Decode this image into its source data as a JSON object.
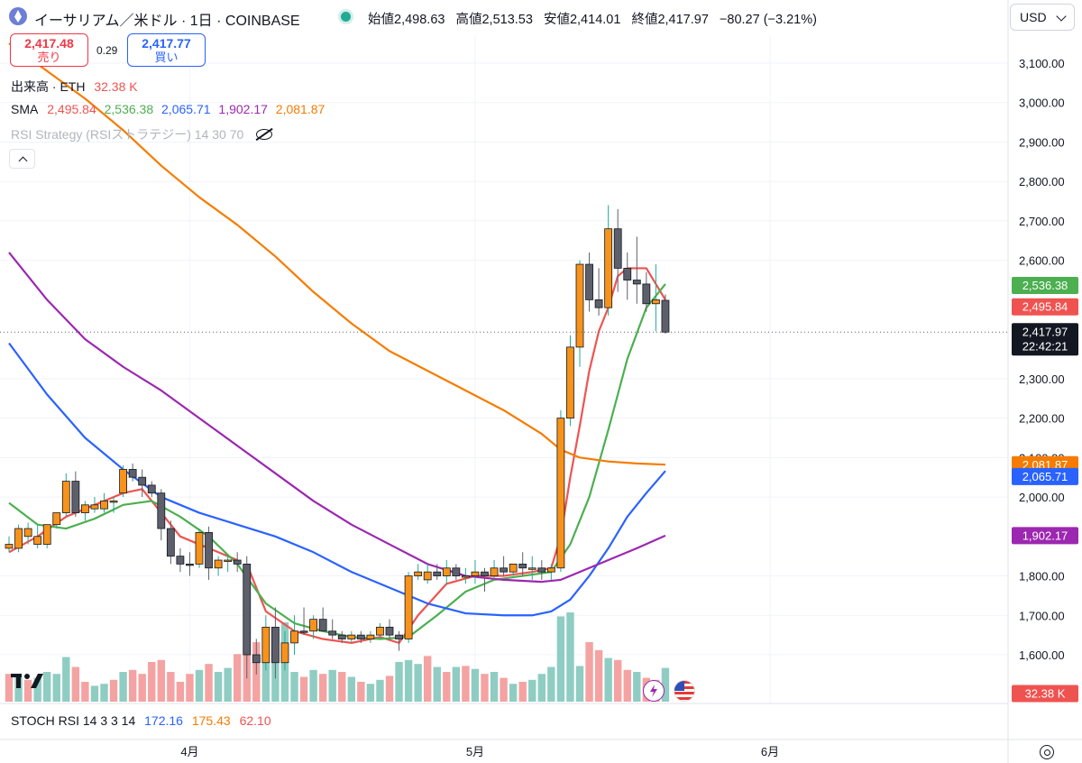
{
  "header": {
    "title": "イーサリアム／米ドル · 1日 · COINBASE",
    "ohlc": [
      {
        "label": "始値",
        "value": "2,498.63"
      },
      {
        "label": "高値",
        "value": "2,513.53"
      },
      {
        "label": "安値",
        "value": "2,414.01"
      },
      {
        "label": "終値",
        "value": "2,417.97"
      }
    ],
    "change": "−80.27 (−3.21%)",
    "currency": "USD"
  },
  "trade": {
    "sell_price": "2,417.48",
    "sell_label": "売り",
    "spread": "0.29",
    "buy_price": "2,417.77",
    "buy_label": "買い"
  },
  "legend": {
    "volume_label": "出来高 · ETH",
    "volume_value": "32.38 K",
    "sma_label": "SMA",
    "sma_values": [
      {
        "value": "2,495.84",
        "color": "#ef5350"
      },
      {
        "value": "2,536.38",
        "color": "#4caf50"
      },
      {
        "value": "2,065.71",
        "color": "#2962ff"
      },
      {
        "value": "1,902.17",
        "color": "#9c27b0"
      },
      {
        "value": "2,081.87",
        "color": "#f57c00"
      }
    ],
    "rsi_label": "RSI Strategy (RSIストラテジー) 14 30 70"
  },
  "stoch": {
    "label": "STOCH RSI 14 3 3 14",
    "values": [
      {
        "value": "172.16",
        "color": "#2962ff"
      },
      {
        "value": "175.43",
        "color": "#f57c00"
      },
      {
        "value": "62.10",
        "color": "#ef5350"
      }
    ]
  },
  "price_tags": {
    "last": "2,417.97",
    "countdown": "22:42:21",
    "volume": "32.38 K"
  },
  "icons": [
    "ethereum-logo-icon",
    "live-dot-icon",
    "chevron-down-icon",
    "eye-off-icon",
    "chevron-up-icon",
    "tradingview-logo-icon",
    "flash-icon",
    "us-flag-icon",
    "settings-icon"
  ],
  "chart_data": {
    "type": "candlestick",
    "y_ticks": [
      "3,100.00",
      "3,000.00",
      "2,900.00",
      "2,800.00",
      "2,700.00",
      "2,600.00",
      "2,300.00",
      "2,200.00",
      "2,100.00",
      "2,000.00",
      "1,800.00",
      "1,700.00",
      "1,600.00"
    ],
    "y_range": [
      1540,
      3180
    ],
    "x_ticks": [
      {
        "label": "4月",
        "day": 19
      },
      {
        "label": "5月",
        "day": 49
      },
      {
        "label": "6月",
        "day": 80
      }
    ],
    "colors": {
      "up": "#f7931a",
      "down": "#5d606b",
      "vol_up": "#8fcdc3",
      "vol_down": "#f4a3a2"
    },
    "candles": [
      [
        1880,
        1900,
        1860,
        1870,
        0
      ],
      [
        1870,
        1930,
        1860,
        1920,
        0
      ],
      [
        1920,
        1935,
        1880,
        1900,
        0
      ],
      [
        1900,
        1930,
        1870,
        1880,
        0
      ],
      [
        1880,
        1930,
        1870,
        1930,
        0
      ],
      [
        1930,
        1960,
        1920,
        1960,
        0
      ],
      [
        1960,
        2060,
        1950,
        2040,
        0
      ],
      [
        2040,
        2065,
        1950,
        1960,
        1
      ],
      [
        1960,
        1990,
        1940,
        1980,
        0
      ],
      [
        1980,
        2000,
        1960,
        1970,
        0
      ],
      [
        1970,
        2010,
        1960,
        1990,
        0
      ],
      [
        1990,
        2000,
        1960,
        1990,
        0
      ],
      [
        2010,
        2080,
        2000,
        2070,
        0
      ],
      [
        2070,
        2085,
        2040,
        2050,
        1
      ],
      [
        2050,
        2070,
        2000,
        2030,
        1
      ],
      [
        2030,
        2040,
        2000,
        2010,
        1
      ],
      [
        2010,
        2020,
        1890,
        1920,
        1
      ],
      [
        1920,
        1940,
        1830,
        1850,
        1
      ],
      [
        1850,
        1870,
        1810,
        1830,
        1
      ],
      [
        1830,
        1860,
        1800,
        1830,
        1
      ],
      [
        1830,
        1920,
        1820,
        1910,
        0
      ],
      [
        1910,
        1925,
        1790,
        1820,
        1
      ],
      [
        1820,
        1850,
        1800,
        1840,
        0
      ],
      [
        1840,
        1850,
        1810,
        1840,
        0
      ],
      [
        1840,
        1860,
        1810,
        1830,
        1
      ],
      [
        1830,
        1850,
        1540,
        1600,
        1
      ],
      [
        1600,
        1640,
        1550,
        1580,
        1
      ],
      [
        1580,
        1700,
        1560,
        1670,
        0
      ],
      [
        1670,
        1720,
        1540,
        1580,
        1
      ],
      [
        1580,
        1660,
        1560,
        1630,
        0
      ],
      [
        1630,
        1700,
        1600,
        1660,
        0
      ],
      [
        1660,
        1720,
        1650,
        1660,
        1
      ],
      [
        1660,
        1700,
        1640,
        1690,
        0
      ],
      [
        1690,
        1720,
        1660,
        1660,
        1
      ],
      [
        1660,
        1690,
        1640,
        1650,
        1
      ],
      [
        1650,
        1660,
        1630,
        1640,
        1
      ],
      [
        1640,
        1660,
        1630,
        1650,
        0
      ],
      [
        1650,
        1660,
        1630,
        1640,
        1
      ],
      [
        1640,
        1660,
        1630,
        1650,
        0
      ],
      [
        1650,
        1680,
        1640,
        1670,
        0
      ],
      [
        1670,
        1690,
        1640,
        1650,
        1
      ],
      [
        1650,
        1660,
        1610,
        1640,
        1
      ],
      [
        1640,
        1810,
        1630,
        1800,
        0
      ],
      [
        1800,
        1830,
        1790,
        1810,
        0
      ],
      [
        1790,
        1830,
        1780,
        1810,
        0
      ],
      [
        1810,
        1830,
        1790,
        1800,
        1
      ],
      [
        1800,
        1840,
        1780,
        1820,
        0
      ],
      [
        1820,
        1830,
        1790,
        1800,
        1
      ],
      [
        1800,
        1820,
        1780,
        1800,
        0
      ],
      [
        1800,
        1840,
        1780,
        1810,
        0
      ],
      [
        1810,
        1820,
        1760,
        1800,
        1
      ],
      [
        1800,
        1840,
        1790,
        1820,
        0
      ],
      [
        1820,
        1850,
        1800,
        1810,
        1
      ],
      [
        1810,
        1830,
        1800,
        1830,
        0
      ],
      [
        1830,
        1860,
        1800,
        1820,
        1
      ],
      [
        1820,
        1850,
        1790,
        1820,
        0
      ],
      [
        1820,
        1840,
        1790,
        1810,
        1
      ],
      [
        1810,
        1830,
        1790,
        1820,
        0
      ],
      [
        1820,
        2220,
        1810,
        2200,
        0
      ],
      [
        2200,
        2410,
        2180,
        2380,
        0
      ],
      [
        2380,
        2600,
        2330,
        2590,
        0
      ],
      [
        2590,
        2620,
        2470,
        2500,
        1
      ],
      [
        2500,
        2580,
        2460,
        2480,
        1
      ],
      [
        2480,
        2740,
        2460,
        2680,
        0
      ],
      [
        2680,
        2730,
        2520,
        2580,
        1
      ],
      [
        2580,
        2620,
        2500,
        2550,
        1
      ],
      [
        2550,
        2660,
        2490,
        2540,
        1
      ],
      [
        2540,
        2570,
        2470,
        2490,
        1
      ],
      [
        2500,
        2590,
        2420,
        2490,
        0
      ],
      [
        2498.63,
        2513.53,
        2414.01,
        2417.97,
        1
      ]
    ],
    "volumes": [
      [
        28,
        1
      ],
      [
        25,
        0
      ],
      [
        22,
        1
      ],
      [
        24,
        0
      ],
      [
        30,
        0
      ],
      [
        28,
        0
      ],
      [
        45,
        0
      ],
      [
        35,
        1
      ],
      [
        20,
        1
      ],
      [
        16,
        0
      ],
      [
        18,
        0
      ],
      [
        22,
        1
      ],
      [
        30,
        0
      ],
      [
        32,
        1
      ],
      [
        28,
        1
      ],
      [
        40,
        1
      ],
      [
        42,
        1
      ],
      [
        30,
        1
      ],
      [
        20,
        1
      ],
      [
        28,
        1
      ],
      [
        32,
        0
      ],
      [
        38,
        1
      ],
      [
        30,
        0
      ],
      [
        34,
        0
      ],
      [
        48,
        1
      ],
      [
        92,
        1
      ],
      [
        60,
        1
      ],
      [
        72,
        0
      ],
      [
        54,
        0
      ],
      [
        80,
        0
      ],
      [
        30,
        0
      ],
      [
        25,
        1
      ],
      [
        32,
        0
      ],
      [
        28,
        1
      ],
      [
        32,
        0
      ],
      [
        30,
        1
      ],
      [
        25,
        0
      ],
      [
        20,
        1
      ],
      [
        18,
        0
      ],
      [
        22,
        0
      ],
      [
        26,
        1
      ],
      [
        40,
        0
      ],
      [
        42,
        0
      ],
      [
        38,
        0
      ],
      [
        46,
        1
      ],
      [
        35,
        0
      ],
      [
        30,
        1
      ],
      [
        35,
        0
      ],
      [
        36,
        1
      ],
      [
        33,
        0
      ],
      [
        28,
        1
      ],
      [
        30,
        0
      ],
      [
        24,
        1
      ],
      [
        18,
        0
      ],
      [
        20,
        1
      ],
      [
        22,
        0
      ],
      [
        28,
        0
      ],
      [
        35,
        0
      ],
      [
        86,
        0
      ],
      [
        90,
        0
      ],
      [
        36,
        0
      ],
      [
        60,
        1
      ],
      [
        52,
        1
      ],
      [
        44,
        0
      ],
      [
        42,
        1
      ],
      [
        32,
        1
      ],
      [
        30,
        0
      ],
      [
        24,
        1
      ],
      [
        22,
        1
      ],
      [
        34,
        0
      ]
    ],
    "sma": [
      {
        "value": 2495.84,
        "color": "#ef5350",
        "points": [
          [
            25,
            1830
          ],
          [
            27,
            1710
          ],
          [
            30,
            1660
          ],
          [
            33,
            1640
          ],
          [
            36,
            1630
          ],
          [
            39,
            1645
          ],
          [
            41,
            1630
          ],
          [
            43,
            1700
          ],
          [
            46,
            1780
          ],
          [
            49,
            1800
          ],
          [
            52,
            1800
          ],
          [
            55,
            1810
          ],
          [
            57,
            1820
          ],
          [
            58,
            1900
          ],
          [
            59,
            2050
          ],
          [
            60,
            2180
          ],
          [
            61,
            2320
          ],
          [
            62,
            2420
          ],
          [
            63,
            2480
          ],
          [
            64,
            2560
          ],
          [
            65,
            2580
          ],
          [
            67,
            2580
          ],
          [
            69,
            2500
          ]
        ],
        "start": [
          [
            0,
            1860
          ],
          [
            3,
            1900
          ],
          [
            6,
            1950
          ],
          [
            9,
            1980
          ],
          [
            12,
            2010
          ],
          [
            14,
            2020
          ],
          [
            16,
            1960
          ],
          [
            18,
            1900
          ],
          [
            20,
            1880
          ],
          [
            22,
            1860
          ],
          [
            24,
            1840
          ]
        ]
      },
      {
        "value": 2536.38,
        "color": "#4caf50",
        "points": [
          [
            0,
            1985
          ],
          [
            3,
            1930
          ],
          [
            6,
            1920
          ],
          [
            9,
            1945
          ],
          [
            12,
            1980
          ],
          [
            15,
            1990
          ],
          [
            18,
            1950
          ],
          [
            21,
            1900
          ],
          [
            24,
            1830
          ],
          [
            27,
            1730
          ],
          [
            30,
            1680
          ],
          [
            33,
            1660
          ],
          [
            36,
            1645
          ],
          [
            39,
            1640
          ],
          [
            42,
            1645
          ],
          [
            45,
            1700
          ],
          [
            48,
            1760
          ],
          [
            51,
            1790
          ],
          [
            54,
            1800
          ],
          [
            57,
            1810
          ],
          [
            59,
            1880
          ],
          [
            61,
            2000
          ],
          [
            63,
            2170
          ],
          [
            65,
            2350
          ],
          [
            67,
            2480
          ],
          [
            69,
            2540
          ]
        ]
      },
      {
        "value": 2065.71,
        "color": "#2962ff",
        "points": [
          [
            0,
            2390
          ],
          [
            4,
            2260
          ],
          [
            8,
            2150
          ],
          [
            12,
            2070
          ],
          [
            16,
            2000
          ],
          [
            20,
            1960
          ],
          [
            24,
            1930
          ],
          [
            28,
            1900
          ],
          [
            32,
            1860
          ],
          [
            36,
            1810
          ],
          [
            40,
            1770
          ],
          [
            44,
            1730
          ],
          [
            48,
            1705
          ],
          [
            52,
            1700
          ],
          [
            55,
            1700
          ],
          [
            57,
            1710
          ],
          [
            59,
            1740
          ],
          [
            61,
            1800
          ],
          [
            63,
            1870
          ],
          [
            65,
            1950
          ],
          [
            67,
            2010
          ],
          [
            69,
            2066
          ]
        ]
      },
      {
        "value": 1902.17,
        "color": "#9c27b0",
        "points": [
          [
            0,
            2620
          ],
          [
            4,
            2500
          ],
          [
            8,
            2400
          ],
          [
            12,
            2330
          ],
          [
            16,
            2270
          ],
          [
            20,
            2200
          ],
          [
            24,
            2130
          ],
          [
            28,
            2060
          ],
          [
            32,
            1990
          ],
          [
            36,
            1930
          ],
          [
            40,
            1880
          ],
          [
            44,
            1830
          ],
          [
            48,
            1800
          ],
          [
            52,
            1790
          ],
          [
            56,
            1785
          ],
          [
            58,
            1790
          ],
          [
            60,
            1810
          ],
          [
            63,
            1840
          ],
          [
            66,
            1870
          ],
          [
            69,
            1902
          ]
        ]
      },
      {
        "value": 2081.87,
        "color": "#f57c00",
        "points": [
          [
            0,
            3150
          ],
          [
            4,
            3080
          ],
          [
            8,
            3010
          ],
          [
            12,
            2930
          ],
          [
            16,
            2840
          ],
          [
            20,
            2760
          ],
          [
            24,
            2690
          ],
          [
            28,
            2610
          ],
          [
            32,
            2520
          ],
          [
            36,
            2440
          ],
          [
            40,
            2370
          ],
          [
            44,
            2320
          ],
          [
            48,
            2270
          ],
          [
            52,
            2220
          ],
          [
            56,
            2160
          ],
          [
            58,
            2120
          ],
          [
            60,
            2100
          ],
          [
            63,
            2090
          ],
          [
            66,
            2085
          ],
          [
            69,
            2082
          ]
        ]
      }
    ]
  }
}
